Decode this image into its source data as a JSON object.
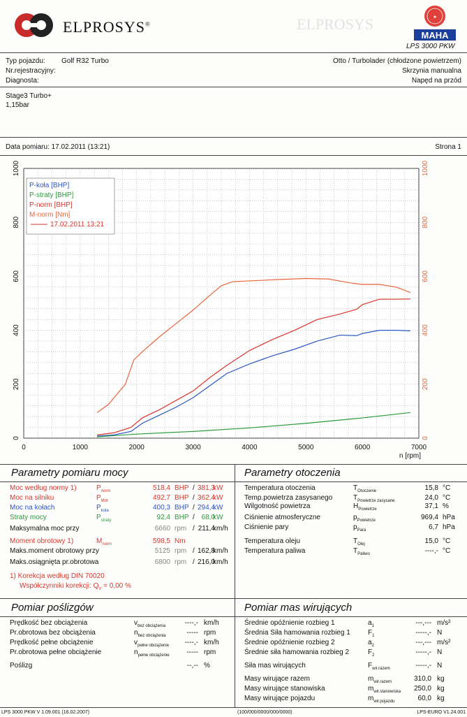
{
  "header": {
    "brand": "ELPROSYS",
    "brand_trademark": "®",
    "model": "LPS 3000 PKW",
    "maha_logo_text": "MAHA",
    "maha_seal_text": "Maschinenbau Haldenwang"
  },
  "vehicle": {
    "type_label": "Typ pojazdu:",
    "type_value": "Golf R32 Turbo",
    "reg_label": "Nr.rejestracyjny:",
    "diag_label": "Diagnosta:",
    "engine": "Otto / Turbolader (chłodzone powietrzem)",
    "gearbox": "Skrzynia manualna",
    "drive": "Napęd na przód"
  },
  "notes": [
    "Stage3 Turbo+",
    "1,15bar"
  ],
  "measurement": {
    "date_label": "Data pomiaru: 17.02.2011 (13:21)",
    "page_label": "Strona 1"
  },
  "chart_data": {
    "type": "line",
    "x_label": "n [rpm]",
    "xlim": [
      0,
      7000
    ],
    "ylim_left": [
      0,
      1000
    ],
    "ylim_right": [
      0,
      1000
    ],
    "x_ticks": [
      0,
      1000,
      2000,
      3000,
      4000,
      5000,
      6000,
      7000
    ],
    "y_ticks": [
      0,
      200,
      400,
      600,
      800,
      1000
    ],
    "grid": true,
    "legend_position": "top-left",
    "legend": [
      "P-koła [BHP]",
      "P-straty [BHP]",
      "P-norm [BHP]",
      "M-norm [Nm]",
      "17.02.2011 13:21"
    ],
    "series": [
      {
        "name": "P-koła [BHP]",
        "color": "#2a56c6",
        "x": [
          1300,
          1600,
          1900,
          2100,
          2400,
          2700,
          3000,
          3300,
          3600,
          4000,
          4400,
          4800,
          5200,
          5600,
          5900,
          6000,
          6300,
          6600,
          6850
        ],
        "y": [
          8,
          12,
          25,
          55,
          85,
          115,
          150,
          195,
          240,
          275,
          305,
          330,
          360,
          382,
          380,
          388,
          400,
          400,
          398
        ]
      },
      {
        "name": "P-straty [BHP]",
        "color": "#2a9b3a",
        "x": [
          1300,
          2000,
          3000,
          4000,
          5000,
          6000,
          6850
        ],
        "y": [
          5,
          15,
          25,
          38,
          55,
          75,
          95
        ]
      },
      {
        "name": "P-norm [BHP]",
        "color": "#d9352b",
        "x": [
          1300,
          1600,
          1900,
          2100,
          2400,
          2700,
          3000,
          3300,
          3600,
          4000,
          4400,
          4800,
          5200,
          5600,
          5900,
          6000,
          6300,
          6600,
          6850
        ],
        "y": [
          12,
          20,
          40,
          75,
          105,
          140,
          175,
          225,
          270,
          325,
          365,
          400,
          440,
          460,
          478,
          495,
          515,
          515,
          516
        ]
      },
      {
        "name": "M-norm [Nm]",
        "color": "#e8663a",
        "x": [
          1300,
          1500,
          1800,
          1950,
          2100,
          2400,
          2700,
          3000,
          3300,
          3500,
          3700,
          4000,
          4500,
          5000,
          5400,
          5800,
          6000,
          6300,
          6600,
          6850
        ],
        "y": [
          95,
          125,
          200,
          290,
          320,
          375,
          425,
          475,
          530,
          565,
          580,
          583,
          588,
          592,
          590,
          575,
          570,
          570,
          560,
          540
        ]
      }
    ]
  },
  "power_params": {
    "title": "Parametry pomiaru mocy",
    "rows": [
      {
        "label": "Moc według normy 1)",
        "sym": "P",
        "sub": "norm",
        "v1": "518,4",
        "u1": "BHP",
        "sep": "/",
        "v2": "381,3",
        "u2": "kW",
        "color": "#d9352b"
      },
      {
        "label": "Moc na silniku",
        "sym": "P",
        "sub": "Mot",
        "v1": "492,7",
        "u1": "BHP",
        "sep": "/",
        "v2": "362,4",
        "u2": "kW",
        "color": "#d9352b"
      },
      {
        "label": "Moc na kołach",
        "sym": "P",
        "sub": "koła",
        "v1": "400,3",
        "u1": "BHP",
        "sep": "/",
        "v2": "294,4",
        "u2": "kW",
        "color": "#2a56c6"
      },
      {
        "label": "Straty mocy",
        "sym": "P",
        "sub": "straty",
        "v1": "92,4",
        "u1": "BHP",
        "sep": "/",
        "v2": "68,0",
        "u2": "kW",
        "color": "#2a9b3a"
      },
      {
        "label": "Maksymalna moc przy",
        "sym": "",
        "sub": "",
        "v1": "6660",
        "u1": "rpm",
        "sep": "/",
        "v2": "211,4",
        "u2": "km/h",
        "color": "#111"
      },
      {
        "label": "Moment obrotowy 1)",
        "sym": "M",
        "sub": "norm",
        "v1": "598,5",
        "u1": "Nm",
        "sep": "",
        "v2": "",
        "u2": "",
        "color": "#d9352b"
      },
      {
        "label": "Maks.moment obrotowy przy",
        "sym": "",
        "sub": "",
        "v1": "5125",
        "u1": "rpm",
        "sep": "/",
        "v2": "162,8",
        "u2": "km/h",
        "color": "#111"
      },
      {
        "label": "Maks.osiągnięta pr.obrotowa",
        "sym": "",
        "sub": "",
        "v1": "6800",
        "u1": "rpm",
        "sep": "/",
        "v2": "216,0",
        "u2": "km/h",
        "color": "#111"
      }
    ],
    "correction_note": "1) Korekcja według DIN 70020",
    "correction_factor": "Współczynniki korekcji: Q",
    "correction_sub": "V",
    "correction_value": "= 0,00 %"
  },
  "ambient_params": {
    "title": "Parametry otoczenia",
    "rows": [
      {
        "label": "Temperatura otoczenia",
        "sym": "T",
        "sub": "Otoczenie",
        "v": "15,8",
        "u": "°C"
      },
      {
        "label": "Temp.powietrza zasysanego",
        "sym": "T",
        "sub": "Powietrze zasysane",
        "v": "24,0",
        "u": "°C"
      },
      {
        "label": "Wilgotność powietrza",
        "sym": "H",
        "sub": "Powietrze",
        "v": "37,1",
        "u": "%"
      },
      {
        "label": "Ciśnienie atmosferyczne",
        "sym": "p",
        "sub": "Powietrze",
        "v": "969,4",
        "u": "hPa"
      },
      {
        "label": "Ciśnienie pary",
        "sym": "p",
        "sub": "Para",
        "v": "6,7",
        "u": "hPa"
      },
      {
        "label": "Temperatura oleju",
        "sym": "T",
        "sub": "Olej",
        "v": "15,0",
        "u": "°C"
      },
      {
        "label": "Temperatura paliwa",
        "sym": "T",
        "sub": "Paliwo",
        "v": "----,-",
        "u": "°C"
      }
    ]
  },
  "slip": {
    "title": "Pomiar poślizgów",
    "rows": [
      {
        "label": "Prędkość bez obciążenia",
        "sym": "v",
        "sub": "bez obciążenia",
        "v": "----,-",
        "u": "km/h"
      },
      {
        "label": "Pr.obrotowa bez obciążenia",
        "sym": "n",
        "sub": "bez obciążenia",
        "v": "-----",
        "u": "rpm"
      },
      {
        "label": "Prędkość pełne obciążenie",
        "sym": "v",
        "sub": "pełne obciążenie",
        "v": "----,-",
        "u": "km/h"
      },
      {
        "label": "Pr.obrotowa pełne obciążenie",
        "sym": "n",
        "sub": "pełne obciążenie",
        "v": "-----",
        "u": "rpm"
      },
      {
        "label": "Poślizg",
        "sym": "",
        "sub": "",
        "v": "--,--",
        "u": "%"
      }
    ]
  },
  "inertia": {
    "title": "Pomiar mas wirujących",
    "rows": [
      {
        "label": "Średnie opóźnienie rozbieg 1",
        "sym": "a",
        "sub": "1",
        "v": "---,---",
        "u": "m/s²"
      },
      {
        "label": "Średnia Siła hamowania rozbieg 1",
        "sym": "F",
        "sub": "1",
        "v": "-----,-",
        "u": "N"
      },
      {
        "label": "Średnie opóźnienie rozbieg 2",
        "sym": "a",
        "sub": "2",
        "v": "---,---",
        "u": "m/s²"
      },
      {
        "label": "Średnie siła hamowania rozbieg 2",
        "sym": "F",
        "sub": "2",
        "v": "-----,-",
        "u": "N"
      },
      {
        "label": "Siła mas wirujących",
        "sym": "F",
        "sub": "wir.razem",
        "v": "-----,-",
        "u": "N"
      },
      {
        "label": "Masy wirujące razem",
        "sym": "m",
        "sub": "wir.razem",
        "v": "310,0",
        "u": "kg"
      },
      {
        "label": "Masy wirujące stanowiska",
        "sym": "m",
        "sub": "wir.stanowiska",
        "v": "250,0",
        "u": "kg"
      },
      {
        "label": "Masy wirujące pojazdu",
        "sym": "m",
        "sub": "wir.pojazdu",
        "v": "60,0",
        "u": "kg"
      }
    ]
  },
  "footer": {
    "left": "LPS 3000 PKW V 1.09.001 (16.02.2007)",
    "center": "(100/000/0000/000/0000)",
    "right": "LPS-EURO V1.24.001"
  }
}
